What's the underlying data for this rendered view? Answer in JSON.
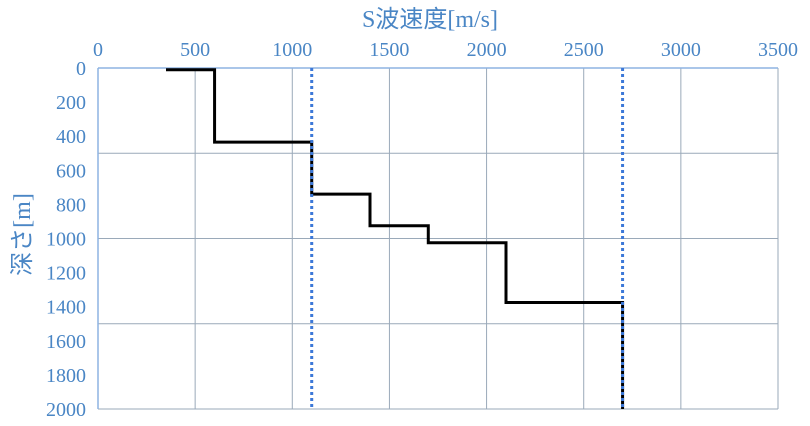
{
  "chart_data": {
    "type": "line",
    "title": "",
    "xlabel": "S波速度[m/s]",
    "ylabel": "深さ[m]",
    "x_axis_position": "top",
    "y_axis_inverted": true,
    "xlim": [
      0,
      3500
    ],
    "ylim": [
      0,
      2000
    ],
    "x_ticks": [
      "0",
      "500",
      "1000",
      "1500",
      "2000",
      "2500",
      "3000",
      "3500"
    ],
    "y_ticks": [
      "0",
      "200",
      "400",
      "600",
      "800",
      "1000",
      "1200",
      "1400",
      "1600",
      "1800",
      "2000"
    ],
    "grid": {
      "vertical": [
        500,
        1000,
        1500,
        2000,
        2500,
        3000,
        3500
      ],
      "horizontal": [
        500,
        1000,
        1500
      ]
    },
    "series": [
      {
        "style": "step",
        "points": [
          [
            350,
            10
          ],
          [
            600,
            10
          ],
          [
            600,
            435
          ],
          [
            1100,
            435
          ],
          [
            1100,
            740
          ],
          [
            1400,
            740
          ],
          [
            1400,
            925
          ],
          [
            1700,
            925
          ],
          [
            1700,
            1025
          ],
          [
            2100,
            1025
          ],
          [
            2100,
            1375
          ],
          [
            2700,
            1375
          ],
          [
            2700,
            2000
          ]
        ]
      },
      {
        "style": "reference-line",
        "x": 1100,
        "y": [
          0,
          2000
        ]
      },
      {
        "style": "reference-line",
        "x": 2700,
        "y": [
          0,
          2000
        ]
      }
    ],
    "colors": {
      "label_text": "#4a86c5",
      "grid": "#9aa9b9",
      "axis": "#8db3e2",
      "profile": "#000000",
      "reference": "#3c78d8"
    }
  }
}
